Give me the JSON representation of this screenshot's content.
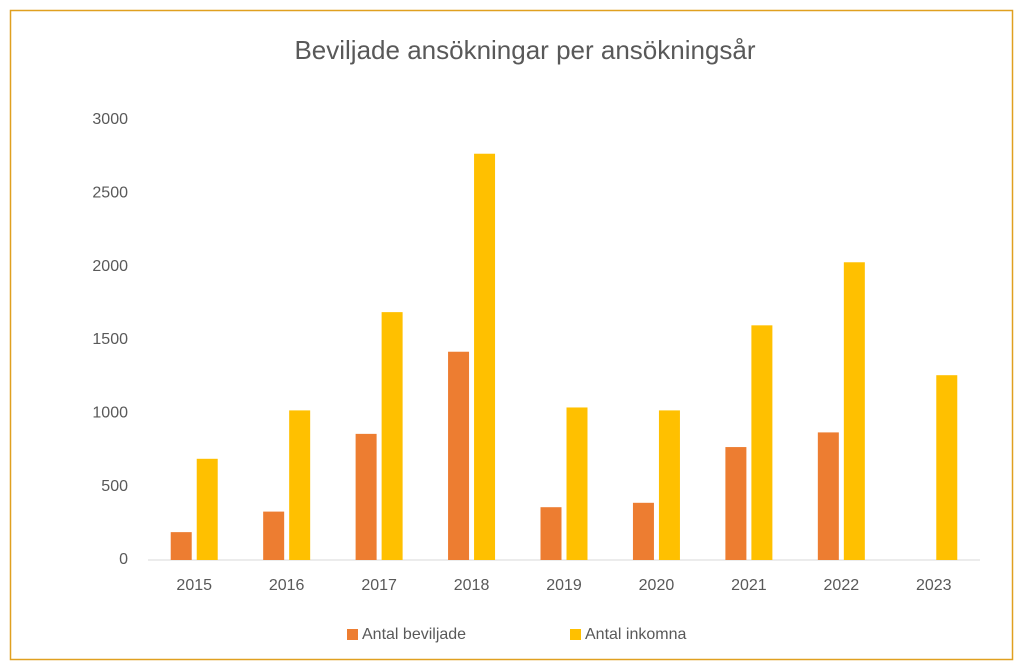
{
  "chart_data": {
    "type": "bar",
    "title": "Beviljade ansökningar per ansökningsår",
    "categories": [
      "2015",
      "2016",
      "2017",
      "2018",
      "2019",
      "2020",
      "2021",
      "2022",
      "2023"
    ],
    "series": [
      {
        "name": "Antal beviljade",
        "color": "#ed7d31",
        "values": [
          190,
          330,
          860,
          1420,
          360,
          390,
          770,
          870,
          null
        ]
      },
      {
        "name": "Antal inkomna",
        "color": "#ffc000",
        "values": [
          690,
          1020,
          1690,
          2770,
          1040,
          1020,
          1600,
          2030,
          1260
        ]
      }
    ],
    "ylim": [
      0,
      3000
    ],
    "yticks": [
      0,
      500,
      1000,
      1500,
      2000,
      2500,
      3000
    ],
    "grid": false,
    "legend": "bottom"
  }
}
